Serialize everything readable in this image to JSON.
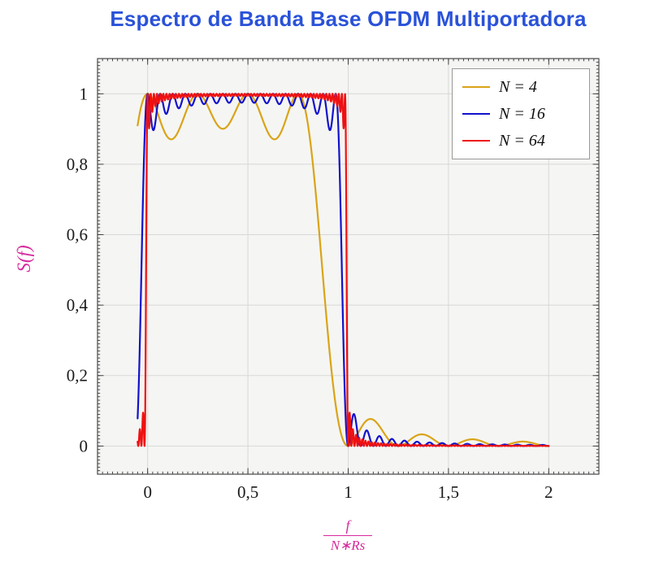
{
  "chart_data": {
    "type": "line",
    "title": "Espectro de Banda Base OFDM Multiportadora",
    "ylabel": "S(f)",
    "xlabel_numerator": "f",
    "xlabel_denominator": "N∗Rs",
    "xlim": [
      -0.25,
      2.25
    ],
    "ylim": [
      -0.08,
      1.1
    ],
    "x_range": [
      -0.05,
      2.0
    ],
    "samples": 1900,
    "grid": true,
    "legend_position": "top-right-inside",
    "formula": "S(x) = sum_{k=0}^{N-1} sinc^2(N*x - k), with x = f/(N*Rs); passband ~1 over 0<x<1 with inter-carrier ripple (dips ~0.87 for N=4, shallower for larger N), steep roll-off at x=0 and x=1 (sharper as N grows), decaying sidelobes for x>1 touching 0 at x=(N+m)/N",
    "x_ticks": [
      {
        "v": 0,
        "label": "0"
      },
      {
        "v": 0.5,
        "label": "0,5"
      },
      {
        "v": 1,
        "label": "1"
      },
      {
        "v": 1.5,
        "label": "1,5"
      },
      {
        "v": 2,
        "label": "2"
      }
    ],
    "y_ticks": [
      {
        "v": 0,
        "label": "0"
      },
      {
        "v": 0.2,
        "label": "0,2"
      },
      {
        "v": 0.4,
        "label": "0,4"
      },
      {
        "v": 0.6,
        "label": "0,6"
      },
      {
        "v": 0.8,
        "label": "0,8"
      },
      {
        "v": 1,
        "label": "1"
      }
    ],
    "x_minor_step": 0.025,
    "y_minor_step": 0.01,
    "series": [
      {
        "name": "N-4",
        "label": "N = 4",
        "N": 4,
        "color": "#d9a418"
      },
      {
        "name": "N-16",
        "label": "N = 16",
        "N": 16,
        "color": "#1212cc"
      },
      {
        "name": "N-64",
        "label": "N = 64",
        "N": 64,
        "color": "#ee1111"
      }
    ],
    "colors": {
      "title": "#2a52d8",
      "axis_label": "#d62a9d",
      "plot_bg": "#f5f5f3",
      "grid": "#d8d8d8",
      "frame": "#4a4a4a",
      "tick": "#333333",
      "tick_label": "#1a1a1a",
      "legend_border": "#9a9a9a",
      "legend_bg": "#ffffff"
    }
  }
}
